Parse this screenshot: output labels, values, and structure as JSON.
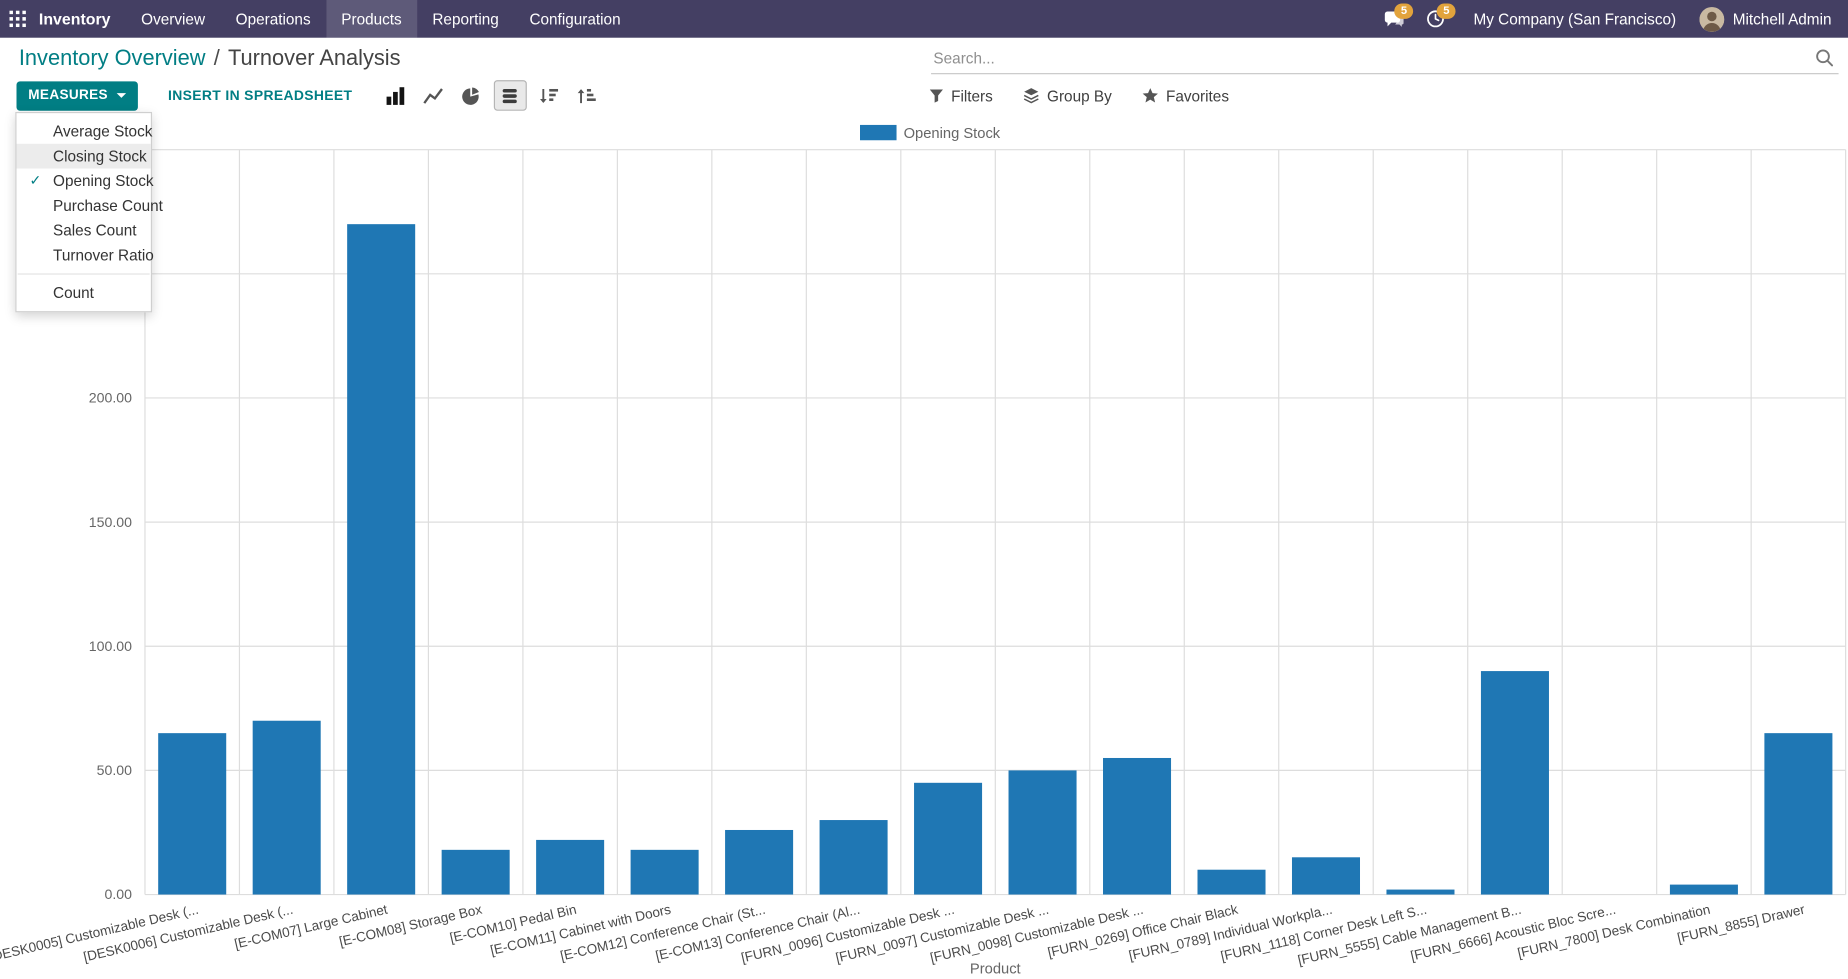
{
  "colors": {
    "navbar": "#443f63",
    "accent": "#017e84",
    "bar_series": "#1f77b4",
    "badge": "#e2a33c"
  },
  "topbar": {
    "app_name": "Inventory",
    "menu_items": [
      "Overview",
      "Operations",
      "Products",
      "Reporting",
      "Configuration"
    ],
    "active_menu": "Products",
    "messages_badge": "5",
    "activities_badge": "5",
    "company": "My Company (San Francisco)",
    "user": "Mitchell Admin"
  },
  "breadcrumb": {
    "parent": "Inventory Overview",
    "separator": "/",
    "current": "Turnover Analysis"
  },
  "search": {
    "placeholder": "Search..."
  },
  "controls": {
    "measures_label": "MEASURES",
    "insert_label": "INSERT IN SPREADSHEET",
    "filters_label": "Filters",
    "groupby_label": "Group By",
    "favorites_label": "Favorites"
  },
  "icons": {
    "apps": "grid-icon",
    "messages": "chat-bubble-icon",
    "activities": "clock-icon",
    "search": "magnifier-icon",
    "view_modes": [
      "bar-chart-icon",
      "line-chart-icon",
      "pie-chart-icon",
      "stacked-icon",
      "sort-desc-icon",
      "sort-asc-icon"
    ],
    "filters": "funnel-icon",
    "group_by": "layers-icon",
    "favorites": "star-icon",
    "measures_caret": "caret-down-icon"
  },
  "measures_menu": {
    "items": [
      {
        "label": "Average Stock",
        "checked": false,
        "highlighted": false
      },
      {
        "label": "Closing Stock",
        "checked": false,
        "highlighted": true
      },
      {
        "label": "Opening Stock",
        "checked": true,
        "highlighted": false
      },
      {
        "label": "Purchase Count",
        "checked": false,
        "highlighted": false
      },
      {
        "label": "Sales Count",
        "checked": false,
        "highlighted": false
      },
      {
        "label": "Turnover Ratio",
        "checked": false,
        "highlighted": false
      }
    ],
    "footer_items": [
      "Count"
    ]
  },
  "chart_data": {
    "type": "bar",
    "title": "",
    "xlabel": "Product",
    "ylabel": "",
    "legend": [
      "Opening Stock"
    ],
    "legend_position": "top",
    "grid": true,
    "series_color": "#1f77b4",
    "ylim": [
      0,
      300
    ],
    "ytick_step": 50,
    "categories": [
      "[DESK0005] Customizable Desk (...",
      "[DESK0006] Customizable Desk (...",
      "[E-COM07] Large Cabinet",
      "[E-COM08] Storage Box",
      "[E-COM10] Pedal Bin",
      "[E-COM11] Cabinet with Doors",
      "[E-COM12] Conference Chair (St...",
      "[E-COM13] Conference Chair (Al...",
      "[FURN_0096] Customizable Desk ...",
      "[FURN_0097] Customizable Desk ...",
      "[FURN_0098] Customizable Desk ...",
      "[FURN_0269] Office Chair Black",
      "[FURN_0789] Individual Workpla...",
      "[FURN_1118] Corner Desk Left S...",
      "[FURN_5555] Cable Management B...",
      "[FURN_6666] Acoustic Bloc Scre...",
      "[FURN_7800] Desk Combination",
      "[FURN_8855] Drawer"
    ],
    "values": [
      65,
      70,
      270,
      18,
      22,
      18,
      26,
      30,
      45,
      50,
      55,
      10,
      15,
      2,
      90,
      0,
      4,
      65
    ]
  }
}
